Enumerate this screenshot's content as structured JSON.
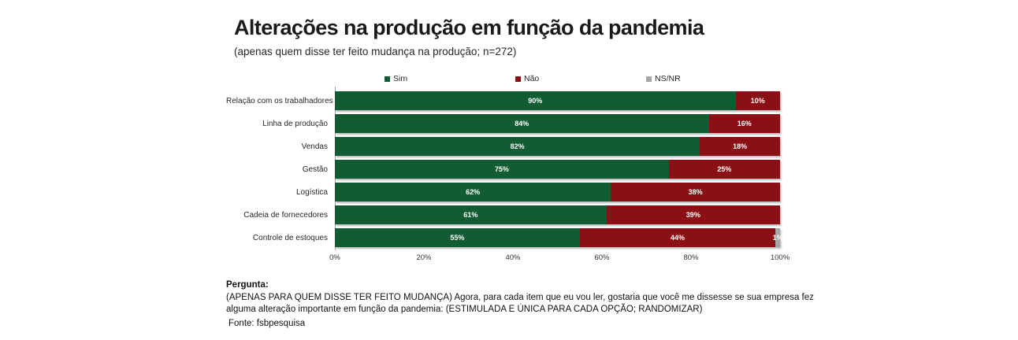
{
  "title": "Alterações na produção em função da pandemia",
  "subtitle": "(apenas quem disse ter feito mudança na produção; n=272)",
  "colors": {
    "sim_green": "#115c32",
    "nao_red": "#8b1015",
    "nsnr_gray": "#a6a6a6",
    "axis_line": "#a6a6a6",
    "bar_value_text": "#ffffff"
  },
  "chart_data": {
    "type": "bar",
    "orientation": "horizontal-stacked",
    "title": "Alterações na produção em função da pandemia",
    "subtitle": "(apenas quem disse ter feito mudança na produção; n=272)",
    "categories": [
      "Relação com os trabalhadores",
      "Linha de produção",
      "Vendas",
      "Gestão",
      "Logística",
      "Cadeia de fornecedores",
      "Controle de estoques"
    ],
    "series": [
      {
        "name": "Sim",
        "color": "#115c32",
        "values": [
          90,
          84,
          82,
          75,
          62,
          61,
          55
        ]
      },
      {
        "name": "Não",
        "color": "#8b1015",
        "values": [
          10,
          16,
          18,
          25,
          38,
          39,
          44
        ]
      },
      {
        "name": "NS/NR",
        "color": "#a6a6a6",
        "values": [
          0,
          0,
          0,
          0,
          0,
          0,
          1
        ]
      }
    ],
    "value_suffix": "%",
    "xlim": [
      0,
      100
    ],
    "xticks": [
      "0%",
      "20%",
      "40%",
      "60%",
      "80%",
      "100%"
    ],
    "grid": false,
    "legend_position": "top"
  },
  "footer": {
    "question_label": "Pergunta:",
    "question_text": "(APENAS PARA QUEM DISSE TER FEITO MUDANÇA) Agora, para cada item que eu vou ler, gostaria que você me dissesse se sua empresa fez alguma alteração importante em função da pandemia: (ESTIMULADA E ÚNICA PARA CADA OPÇÃO; RANDOMIZAR)",
    "source": "Fonte: fsbpesquisa"
  }
}
